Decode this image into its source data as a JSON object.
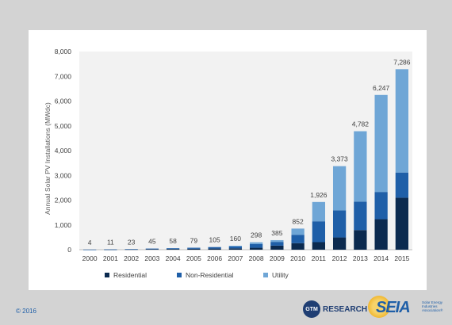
{
  "footer": {
    "copyright": "© 2016",
    "gtm_logo": "GTM",
    "gtm_text": "RESEARCH",
    "seia_logo": "SEIA",
    "seia_sub": "Solar Energy Industries Association®"
  },
  "chart_data": {
    "type": "bar",
    "stacked": true,
    "title": "",
    "xlabel": "",
    "ylabel": "Annual Solar PV Installations (MWdc)",
    "ylim": [
      0,
      8000
    ],
    "yticks": [
      "0",
      "1,000",
      "2,000",
      "3,000",
      "4,000",
      "5,000",
      "6,000",
      "7,000",
      "8,000"
    ],
    "ytick_values": [
      0,
      1000,
      2000,
      3000,
      4000,
      5000,
      6000,
      7000,
      8000
    ],
    "grid": false,
    "legend_position": "bottom",
    "categories": [
      "2000",
      "2001",
      "2002",
      "2003",
      "2004",
      "2005",
      "2006",
      "2007",
      "2008",
      "2009",
      "2010",
      "2011",
      "2012",
      "2013",
      "2014",
      "2015"
    ],
    "totals_labels": [
      "4",
      "11",
      "23",
      "45",
      "58",
      "79",
      "105",
      "160",
      "298",
      "385",
      "852",
      "1,926",
      "3,373",
      "4,782",
      "6,247",
      "7,286"
    ],
    "series": [
      {
        "name": "Residential",
        "color": "#0b2a4f",
        "values": [
          3,
          7,
          13,
          20,
          28,
          38,
          45,
          55,
          78,
          164,
          264,
          304,
          494,
          792,
          1231,
          2099
        ]
      },
      {
        "name": "Non-Residential",
        "color": "#1f5fa8",
        "values": [
          1,
          4,
          10,
          25,
          30,
          41,
          60,
          75,
          150,
          151,
          338,
          842,
          1093,
          1150,
          1100,
          1016
        ]
      },
      {
        "name": "Utility",
        "color": "#6fa6d6",
        "values": [
          0,
          0,
          0,
          0,
          0,
          0,
          0,
          30,
          70,
          70,
          250,
          780,
          1786,
          2840,
          3916,
          4171
        ]
      }
    ]
  }
}
